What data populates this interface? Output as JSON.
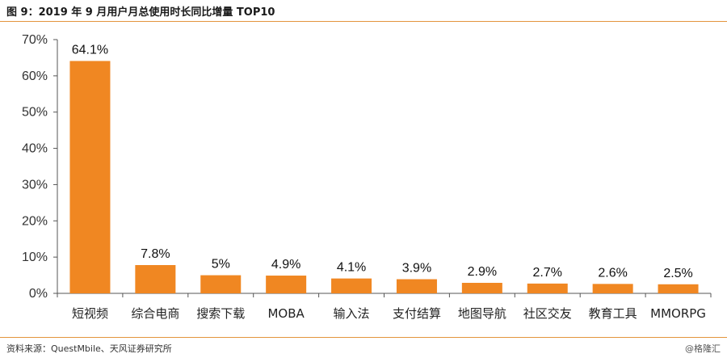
{
  "header": {
    "title": "图 9：2019 年 9 月用户月总使用时长同比增量 TOP10"
  },
  "footer": {
    "source": "资料来源：QuestMbile、天风证券研究所",
    "watermark": "@格隆汇"
  },
  "colors": {
    "bar": "#f08722",
    "rule": "#e3953d",
    "axis": "#555555"
  },
  "chart_data": {
    "type": "bar",
    "title": "",
    "xlabel": "",
    "ylabel": "",
    "categories": [
      "短视频",
      "综合电商",
      "搜索下载",
      "MOBA",
      "输入法",
      "支付结算",
      "地图导航",
      "社区交友",
      "教育工具",
      "MMORPG"
    ],
    "values": [
      64.1,
      7.8,
      5,
      4.9,
      4.1,
      3.9,
      2.9,
      2.7,
      2.6,
      2.5
    ],
    "data_labels": [
      "64.1%",
      "7.8%",
      "5%",
      "4.9%",
      "4.1%",
      "3.9%",
      "2.9%",
      "2.7%",
      "2.6%",
      "2.5%"
    ],
    "ylim": [
      0,
      70
    ],
    "yticks": [
      0,
      10,
      20,
      30,
      40,
      50,
      60,
      70
    ],
    "ytick_labels": [
      "0%",
      "10%",
      "20%",
      "30%",
      "40%",
      "50%",
      "60%",
      "70%"
    ],
    "grid": false,
    "legend": "none"
  }
}
